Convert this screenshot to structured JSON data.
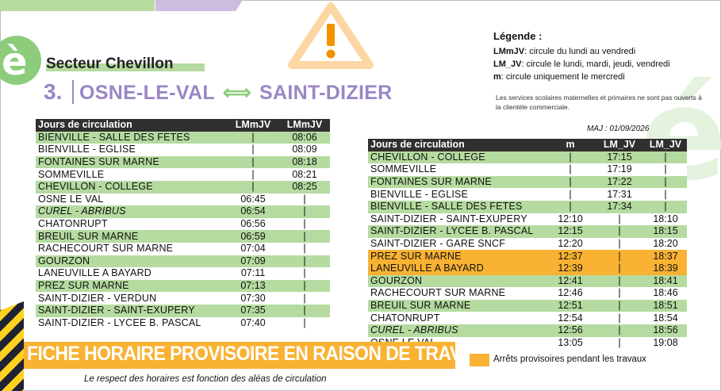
{
  "sector": "Secteur Chevillon",
  "line": {
    "number": "3.",
    "from": "OSNE-LE-VAL",
    "arrow": "⟺",
    "to": "SAINT-DIZIER"
  },
  "legend": {
    "title": "Légende :",
    "items": [
      {
        "code": "LMmJV",
        "text": ": circule du lundi au vendredi"
      },
      {
        "code": "LM_JV",
        "text": ": circule le lundi, mardi, jeudi, vendredi"
      },
      {
        "code": "m",
        "text": ": circule uniquement le mercredi"
      }
    ],
    "note": "Les services scolaires maternelles et primaires ne sont pas ouverts à la clientèle commerciale."
  },
  "maj": "MAJ : 01/09/2026",
  "outbound": {
    "headers": [
      "Jours de circulation",
      "LMmJV",
      "LMmJV"
    ],
    "rows": [
      {
        "stop": "BIENVILLE - SALLE DES FETES",
        "t": [
          "",
          "08:06"
        ],
        "style": "g"
      },
      {
        "stop": "BIENVILLE - EGLISE",
        "t": [
          "",
          "08:09"
        ],
        "style": "w"
      },
      {
        "stop": "FONTAINES SUR MARNE",
        "t": [
          "",
          "08:18"
        ],
        "style": "g"
      },
      {
        "stop": "SOMMEVILLE",
        "t": [
          "",
          "08:21"
        ],
        "style": "w"
      },
      {
        "stop": "CHEVILLON - COLLEGE",
        "t": [
          "",
          "08:25"
        ],
        "style": "g"
      },
      {
        "stop": "OSNE LE VAL",
        "t": [
          "06:45",
          ""
        ],
        "style": "w"
      },
      {
        "stop": "CUREL - ABRIBUS",
        "t": [
          "06:54",
          ""
        ],
        "style": "g",
        "italic": true
      },
      {
        "stop": "CHATONRUPT",
        "t": [
          "06:56",
          ""
        ],
        "style": "w"
      },
      {
        "stop": "BREUIL SUR MARNE",
        "t": [
          "06:59",
          ""
        ],
        "style": "g"
      },
      {
        "stop": "RACHECOURT SUR MARNE",
        "t": [
          "07:04",
          ""
        ],
        "style": "w"
      },
      {
        "stop": "GOURZON",
        "t": [
          "07:09",
          ""
        ],
        "style": "g"
      },
      {
        "stop": "LANEUVILLE A BAYARD",
        "t": [
          "07:11",
          ""
        ],
        "style": "w"
      },
      {
        "stop": "PREZ SUR MARNE",
        "t": [
          "07:13",
          ""
        ],
        "style": "g"
      },
      {
        "stop": "SAINT-DIZIER - VERDUN",
        "t": [
          "07:30",
          ""
        ],
        "style": "w"
      },
      {
        "stop": "SAINT-DIZIER - SAINT-EXUPERY",
        "t": [
          "07:35",
          ""
        ],
        "style": "g"
      },
      {
        "stop": "SAINT-DIZIER - LYCEE B. PASCAL",
        "t": [
          "07:40",
          ""
        ],
        "style": "w"
      }
    ]
  },
  "inbound": {
    "headers": [
      "Jours de circulation",
      "m",
      "LM_JV",
      "LM_JV"
    ],
    "rows": [
      {
        "stop": "CHEVILLON - COLLEGE",
        "t": [
          "",
          "17:15",
          ""
        ],
        "style": "g"
      },
      {
        "stop": "SOMMEVILLE",
        "t": [
          "",
          "17:19",
          ""
        ],
        "style": "w"
      },
      {
        "stop": "FONTAINES SUR MARNE",
        "t": [
          "",
          "17:22",
          ""
        ],
        "style": "g"
      },
      {
        "stop": "BIENVILLE - EGLISE",
        "t": [
          "",
          "17:31",
          ""
        ],
        "style": "w"
      },
      {
        "stop": "BIENVILLE - SALLE DES FETES",
        "t": [
          "",
          "17:34",
          ""
        ],
        "style": "g"
      },
      {
        "stop": "SAINT-DIZIER - SAINT-EXUPERY",
        "t": [
          "12:10",
          "",
          "18:10"
        ],
        "style": "w"
      },
      {
        "stop": "SAINT-DIZIER - LYCEE B. PASCAL",
        "t": [
          "12:15",
          "",
          "18:15"
        ],
        "style": "g"
      },
      {
        "stop": "SAINT-DIZIER - GARE SNCF",
        "t": [
          "12:20",
          "",
          "18:20"
        ],
        "style": "w"
      },
      {
        "stop": "PREZ SUR MARNE",
        "t": [
          "12:37",
          "",
          "18:37"
        ],
        "style": "o"
      },
      {
        "stop": "LANEUVILLE A BAYARD",
        "t": [
          "12:39",
          "",
          "18:39"
        ],
        "style": "o"
      },
      {
        "stop": "GOURZON",
        "t": [
          "12:41",
          "",
          "18:41"
        ],
        "style": "g"
      },
      {
        "stop": "RACHECOURT SUR MARNE",
        "t": [
          "12:46",
          "",
          "18:46"
        ],
        "style": "w"
      },
      {
        "stop": "BREUIL SUR MARNE",
        "t": [
          "12:51",
          "",
          "18:51"
        ],
        "style": "g"
      },
      {
        "stop": "CHATONRUPT",
        "t": [
          "12:54",
          "",
          "18:54"
        ],
        "style": "w"
      },
      {
        "stop": "CUREL - ABRIBUS",
        "t": [
          "12:56",
          "",
          "18:56"
        ],
        "style": "g",
        "italic": true
      },
      {
        "stop": "OSNE LE VAL",
        "t": [
          "13:05",
          "",
          "19:08"
        ],
        "style": "w"
      }
    ]
  },
  "banner": "FICHE HORAIRE PROVISOIRE EN RAISON DE TRAVAUX",
  "footer": "Le respect des horaires est fonction des aléas de circulation",
  "provisional_label": "Arrêts provisoires pendant les travaux",
  "colors": {
    "green": "#b5dba0",
    "orange": "#f9b233",
    "purple": "#9a86c6",
    "header": "#2f2f2f"
  }
}
